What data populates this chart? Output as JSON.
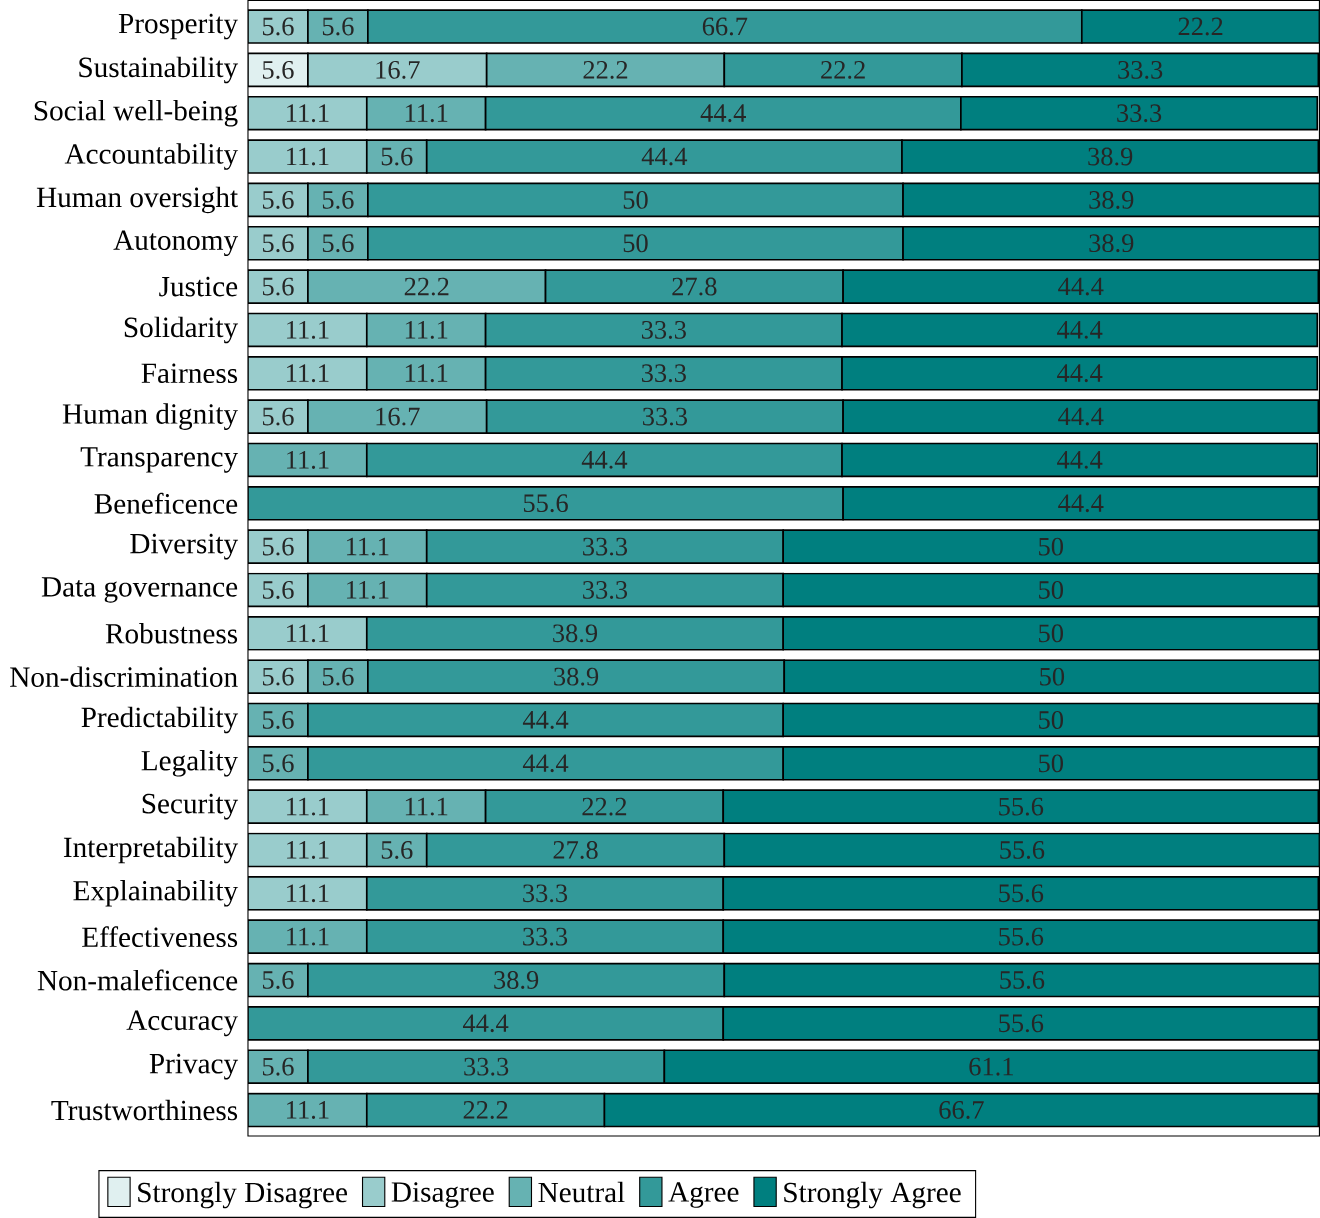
{
  "chart_data": {
    "type": "bar",
    "orientation": "horizontal",
    "stacked": true,
    "data_labels": true,
    "legend": "bottom",
    "tick_labels": "y",
    "xlim": [
      0,
      100.1
    ],
    "categories": [
      "Prosperity",
      "Sustainability",
      "Social well-being",
      "Accountability",
      "Human oversight",
      "Autonomy",
      "Justice",
      "Solidarity",
      "Fairness",
      "Human dignity",
      "Transparency",
      "Beneficence",
      "Diversity",
      "Data governance",
      "Robustness",
      "Non-discrimination",
      "Predictability",
      "Legality",
      "Security",
      "Interpretability",
      "Explainability",
      "Effectiveness",
      "Non-maleficence",
      "Accuracy",
      "Privacy",
      "Trustworthiness"
    ],
    "series": [
      {
        "name": "Strongly Disagree",
        "color": "#e0f0f0",
        "values": [
          null,
          5.6,
          null,
          null,
          null,
          null,
          null,
          null,
          null,
          null,
          null,
          null,
          null,
          null,
          null,
          null,
          null,
          null,
          null,
          null,
          null,
          null,
          null,
          null,
          null,
          null
        ]
      },
      {
        "name": "Disagree",
        "color": "#99cccc",
        "values": [
          5.6,
          16.7,
          11.1,
          11.1,
          5.6,
          5.6,
          5.6,
          11.1,
          11.1,
          5.6,
          null,
          null,
          5.6,
          5.6,
          11.1,
          5.6,
          null,
          null,
          11.1,
          11.1,
          11.1,
          null,
          null,
          null,
          null,
          null
        ]
      },
      {
        "name": "Neutral",
        "color": "#66b2b2",
        "values": [
          5.6,
          22.2,
          11.1,
          5.6,
          5.6,
          5.6,
          22.2,
          11.1,
          11.1,
          16.7,
          11.1,
          null,
          11.1,
          11.1,
          null,
          5.6,
          5.6,
          5.6,
          11.1,
          5.6,
          null,
          11.1,
          5.6,
          null,
          5.6,
          11.1
        ]
      },
      {
        "name": "Agree",
        "color": "#339999",
        "values": [
          66.7,
          22.2,
          44.4,
          44.4,
          50,
          50,
          27.8,
          33.3,
          33.3,
          33.3,
          44.4,
          55.6,
          33.3,
          33.3,
          38.9,
          38.9,
          44.4,
          44.4,
          22.2,
          27.8,
          33.3,
          33.3,
          38.9,
          44.4,
          33.3,
          22.2
        ]
      },
      {
        "name": "Strongly Agree",
        "color": "#007f7f",
        "values": [
          22.2,
          33.3,
          33.3,
          38.9,
          38.9,
          38.9,
          44.4,
          44.4,
          44.4,
          44.4,
          44.4,
          44.4,
          50,
          50,
          50,
          50,
          50,
          50,
          55.6,
          55.6,
          55.6,
          55.6,
          55.6,
          55.6,
          61.1,
          66.7
        ]
      }
    ]
  }
}
